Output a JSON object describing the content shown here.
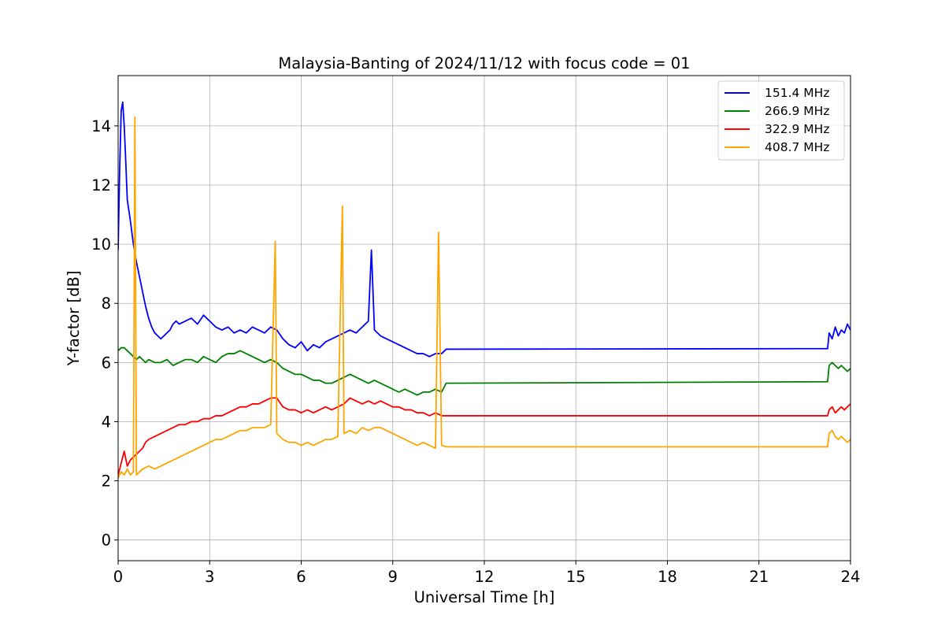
{
  "chart_data": {
    "type": "line",
    "title": "Malaysia-Banting of 2024/11/12 with focus code = 01",
    "xlabel": "Universal Time [h]",
    "ylabel": "Y-factor [dB]",
    "xlim": [
      0,
      24
    ],
    "ylim": [
      -0.7,
      15.7
    ],
    "xticks": [
      0,
      3,
      6,
      9,
      12,
      15,
      18,
      21,
      24
    ],
    "yticks": [
      0,
      2,
      4,
      6,
      8,
      10,
      12,
      14
    ],
    "grid": true,
    "legend": "top-right",
    "series": [
      {
        "name": "151.4 MHz",
        "color": "#0000ff",
        "x": [
          0.0,
          0.05,
          0.1,
          0.15,
          0.2,
          0.25,
          0.3,
          0.4,
          0.5,
          0.6,
          0.7,
          0.8,
          0.9,
          1.0,
          1.1,
          1.2,
          1.3,
          1.4,
          1.5,
          1.6,
          1.7,
          1.8,
          1.9,
          2.0,
          2.2,
          2.4,
          2.6,
          2.8,
          3.0,
          3.2,
          3.4,
          3.6,
          3.8,
          4.0,
          4.2,
          4.4,
          4.6,
          4.8,
          5.0,
          5.2,
          5.4,
          5.6,
          5.8,
          6.0,
          6.2,
          6.4,
          6.6,
          6.8,
          7.0,
          7.2,
          7.4,
          7.6,
          7.8,
          8.0,
          8.2,
          8.3,
          8.4,
          8.6,
          8.8,
          9.0,
          9.2,
          9.4,
          9.6,
          9.8,
          10.0,
          10.2,
          10.4,
          10.6,
          10.75,
          23.25,
          23.3,
          23.4,
          23.5,
          23.6,
          23.7,
          23.8,
          23.9,
          24.0
        ],
        "y": [
          9.8,
          12.5,
          14.5,
          14.8,
          14.0,
          12.8,
          11.5,
          10.8,
          10.0,
          9.4,
          8.9,
          8.4,
          7.9,
          7.5,
          7.2,
          7.0,
          6.9,
          6.8,
          6.9,
          7.0,
          7.1,
          7.3,
          7.4,
          7.3,
          7.4,
          7.5,
          7.3,
          7.6,
          7.4,
          7.2,
          7.1,
          7.2,
          7.0,
          7.1,
          7.0,
          7.2,
          7.1,
          7.0,
          7.2,
          7.1,
          6.8,
          6.6,
          6.5,
          6.7,
          6.4,
          6.6,
          6.5,
          6.7,
          6.8,
          6.9,
          7.0,
          7.1,
          7.0,
          7.2,
          7.4,
          9.8,
          7.1,
          6.9,
          6.8,
          6.7,
          6.6,
          6.5,
          6.4,
          6.3,
          6.3,
          6.2,
          6.3,
          6.3,
          6.45,
          6.47,
          7.0,
          6.8,
          7.2,
          6.9,
          7.1,
          7.0,
          7.3,
          7.1
        ]
      },
      {
        "name": "266.9 MHz",
        "color": "#008000",
        "x": [
          0.0,
          0.1,
          0.2,
          0.3,
          0.4,
          0.5,
          0.6,
          0.7,
          0.8,
          0.9,
          1.0,
          1.2,
          1.4,
          1.6,
          1.8,
          2.0,
          2.2,
          2.4,
          2.6,
          2.8,
          3.0,
          3.2,
          3.4,
          3.6,
          3.8,
          4.0,
          4.2,
          4.4,
          4.6,
          4.8,
          5.0,
          5.2,
          5.4,
          5.6,
          5.8,
          6.0,
          6.2,
          6.4,
          6.6,
          6.8,
          7.0,
          7.2,
          7.4,
          7.6,
          7.8,
          8.0,
          8.2,
          8.4,
          8.6,
          8.8,
          9.0,
          9.2,
          9.4,
          9.6,
          9.8,
          10.0,
          10.2,
          10.4,
          10.6,
          10.75,
          23.25,
          23.3,
          23.4,
          23.5,
          23.6,
          23.7,
          23.8,
          23.9,
          24.0
        ],
        "y": [
          6.4,
          6.5,
          6.5,
          6.4,
          6.3,
          6.2,
          6.1,
          6.2,
          6.1,
          6.0,
          6.1,
          6.0,
          6.0,
          6.1,
          5.9,
          6.0,
          6.1,
          6.1,
          6.0,
          6.2,
          6.1,
          6.0,
          6.2,
          6.3,
          6.3,
          6.4,
          6.3,
          6.2,
          6.1,
          6.0,
          6.1,
          6.0,
          5.8,
          5.7,
          5.6,
          5.6,
          5.5,
          5.4,
          5.4,
          5.3,
          5.3,
          5.4,
          5.5,
          5.6,
          5.5,
          5.4,
          5.3,
          5.4,
          5.3,
          5.2,
          5.1,
          5.0,
          5.1,
          5.0,
          4.9,
          5.0,
          5.0,
          5.1,
          5.0,
          5.3,
          5.35,
          5.9,
          6.0,
          5.9,
          5.8,
          5.9,
          5.8,
          5.7,
          5.8
        ]
      },
      {
        "name": "322.9 MHz",
        "color": "#ff0000",
        "x": [
          0.0,
          0.1,
          0.2,
          0.3,
          0.4,
          0.5,
          0.6,
          0.7,
          0.8,
          0.9,
          1.0,
          1.2,
          1.4,
          1.6,
          1.8,
          2.0,
          2.2,
          2.4,
          2.6,
          2.8,
          3.0,
          3.2,
          3.4,
          3.6,
          3.8,
          4.0,
          4.2,
          4.4,
          4.6,
          4.8,
          5.0,
          5.2,
          5.4,
          5.6,
          5.8,
          6.0,
          6.2,
          6.4,
          6.6,
          6.8,
          7.0,
          7.2,
          7.4,
          7.6,
          7.8,
          8.0,
          8.2,
          8.4,
          8.6,
          8.8,
          9.0,
          9.2,
          9.4,
          9.6,
          9.8,
          10.0,
          10.2,
          10.4,
          10.6,
          10.75,
          23.25,
          23.3,
          23.4,
          23.5,
          23.6,
          23.7,
          23.8,
          23.9,
          24.0
        ],
        "y": [
          2.2,
          2.6,
          3.0,
          2.5,
          2.7,
          2.8,
          2.9,
          3.0,
          3.1,
          3.3,
          3.4,
          3.5,
          3.6,
          3.7,
          3.8,
          3.9,
          3.9,
          4.0,
          4.0,
          4.1,
          4.1,
          4.2,
          4.2,
          4.3,
          4.4,
          4.5,
          4.5,
          4.6,
          4.6,
          4.7,
          4.8,
          4.8,
          4.5,
          4.4,
          4.4,
          4.3,
          4.4,
          4.3,
          4.4,
          4.5,
          4.4,
          4.5,
          4.6,
          4.8,
          4.7,
          4.6,
          4.7,
          4.6,
          4.7,
          4.6,
          4.5,
          4.5,
          4.4,
          4.4,
          4.3,
          4.3,
          4.2,
          4.3,
          4.2,
          4.2,
          4.2,
          4.4,
          4.5,
          4.3,
          4.4,
          4.5,
          4.4,
          4.5,
          4.6
        ]
      },
      {
        "name": "408.7 MHz",
        "color": "#ffa500",
        "x": [
          0.0,
          0.1,
          0.2,
          0.3,
          0.4,
          0.5,
          0.55,
          0.6,
          0.7,
          0.8,
          1.0,
          1.2,
          1.4,
          1.6,
          1.8,
          2.0,
          2.2,
          2.4,
          2.6,
          2.8,
          3.0,
          3.2,
          3.4,
          3.6,
          3.8,
          4.0,
          4.2,
          4.4,
          4.6,
          4.8,
          5.0,
          5.15,
          5.2,
          5.4,
          5.6,
          5.8,
          6.0,
          6.2,
          6.4,
          6.6,
          6.8,
          7.0,
          7.2,
          7.35,
          7.4,
          7.6,
          7.8,
          8.0,
          8.2,
          8.4,
          8.6,
          8.8,
          9.0,
          9.2,
          9.4,
          9.6,
          9.8,
          10.0,
          10.2,
          10.4,
          10.5,
          10.6,
          10.75,
          23.25,
          23.3,
          23.4,
          23.5,
          23.6,
          23.7,
          23.8,
          23.9,
          24.0
        ],
        "y": [
          2.1,
          2.3,
          2.2,
          2.4,
          2.2,
          2.3,
          14.3,
          2.2,
          2.3,
          2.4,
          2.5,
          2.4,
          2.5,
          2.6,
          2.7,
          2.8,
          2.9,
          3.0,
          3.1,
          3.2,
          3.3,
          3.4,
          3.4,
          3.5,
          3.6,
          3.7,
          3.7,
          3.8,
          3.8,
          3.8,
          3.9,
          10.1,
          3.6,
          3.4,
          3.3,
          3.3,
          3.2,
          3.3,
          3.2,
          3.3,
          3.4,
          3.4,
          3.5,
          11.3,
          3.6,
          3.7,
          3.6,
          3.8,
          3.7,
          3.8,
          3.8,
          3.7,
          3.6,
          3.5,
          3.4,
          3.3,
          3.2,
          3.3,
          3.2,
          3.1,
          10.4,
          3.2,
          3.15,
          3.15,
          3.6,
          3.7,
          3.5,
          3.4,
          3.5,
          3.4,
          3.3,
          3.4
        ]
      }
    ]
  }
}
